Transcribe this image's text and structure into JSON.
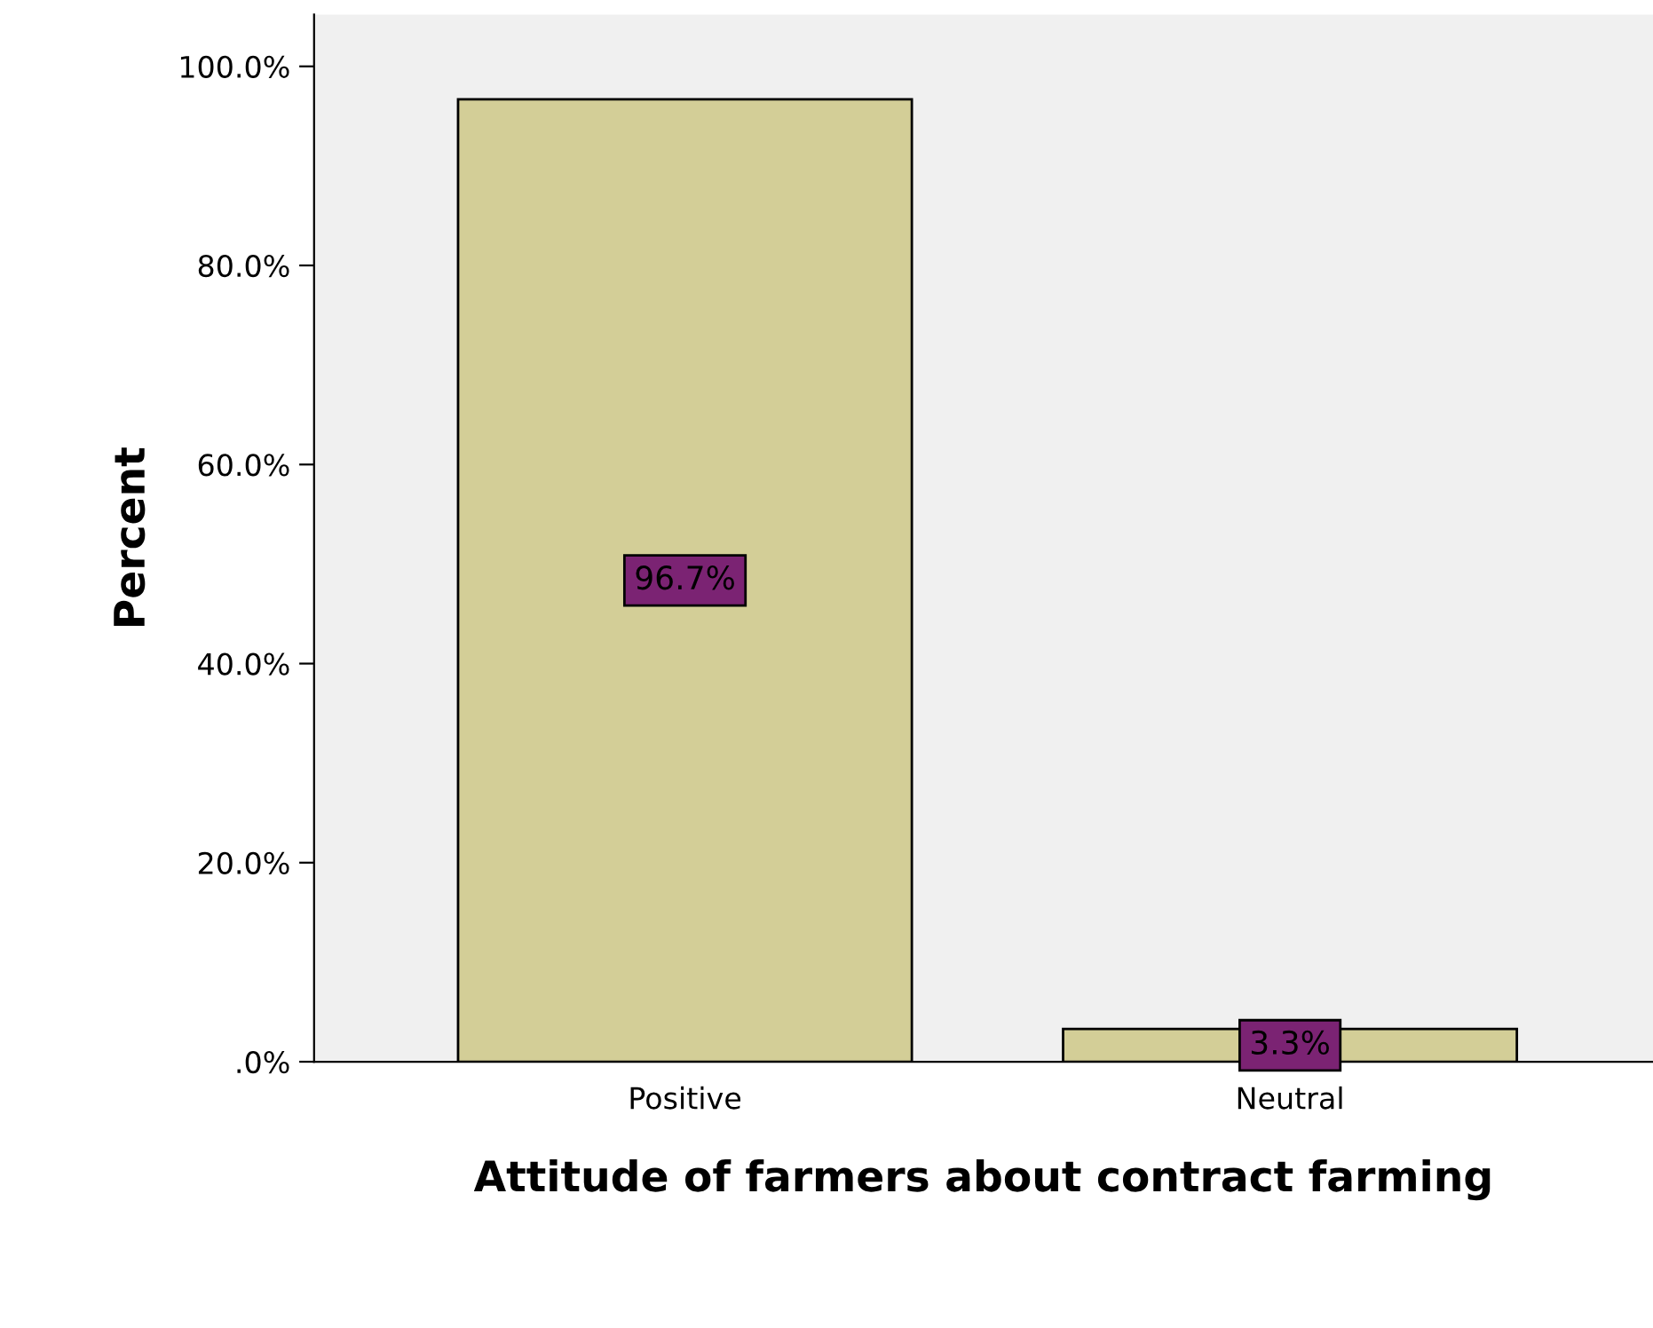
{
  "chart_data": {
    "type": "bar",
    "xlabel": "Attitude of farmers about contract farming",
    "ylabel": "Percent",
    "categories": [
      "Positive",
      "Neutral"
    ],
    "values": [
      96.7,
      3.3
    ],
    "value_labels": [
      "96.7%",
      "3.3%"
    ],
    "color": "#d3ce97",
    "ylim": [
      0,
      105.2
    ],
    "yticks": [
      {
        "value": 0,
        "label": ".0%"
      },
      {
        "value": 20,
        "label": "20.0%"
      },
      {
        "value": 40,
        "label": "40.0%"
      },
      {
        "value": 60,
        "label": "60.0%"
      },
      {
        "value": 80,
        "label": "80.0%"
      },
      {
        "value": 100,
        "label": "100.0%"
      }
    ],
    "grid": false,
    "legend": false
  }
}
